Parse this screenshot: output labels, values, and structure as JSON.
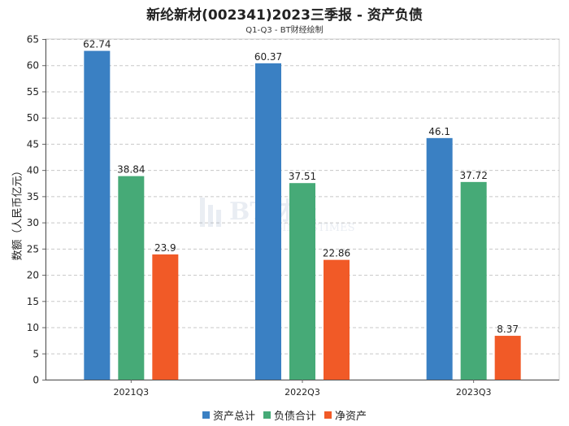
{
  "chart_data": {
    "type": "bar",
    "title": "新纶新材(002341)2023三季报 - 资产负债",
    "subtitle": "Q1-Q3 - BT财经绘制",
    "ylabel": "数额（人民币亿元）",
    "xlabel": "",
    "categories": [
      "2021Q3",
      "2022Q3",
      "2023Q3"
    ],
    "series": [
      {
        "name": "资产总计",
        "color": "#3a80c3",
        "values": [
          62.74,
          60.37,
          46.1
        ],
        "labels": [
          "62.74",
          "60.37",
          "46.1"
        ]
      },
      {
        "name": "负债合计",
        "color": "#46aa77",
        "values": [
          38.84,
          37.51,
          37.72
        ],
        "labels": [
          "38.84",
          "37.51",
          "37.72"
        ]
      },
      {
        "name": "净资产",
        "color": "#f15a27",
        "values": [
          23.9,
          22.86,
          8.37
        ],
        "labels": [
          "23.9",
          "22.86",
          "8.37"
        ]
      }
    ],
    "ylim": [
      0,
      65
    ],
    "yticks": [
      0,
      5,
      10,
      15,
      20,
      25,
      30,
      35,
      40,
      45,
      50,
      55,
      60,
      65
    ],
    "grid": true,
    "legend_position": "bottom"
  },
  "watermark": {
    "text": "BT财经",
    "subtext": "BUSINESSTIMES"
  }
}
